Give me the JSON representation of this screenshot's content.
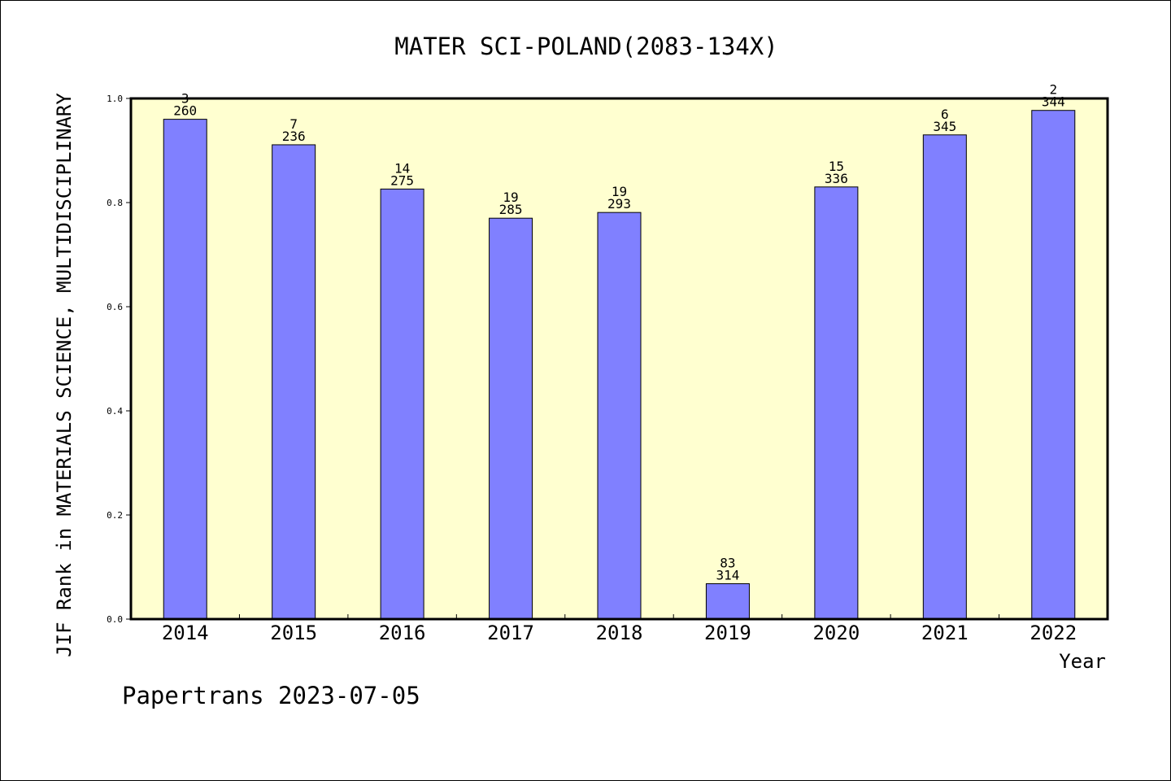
{
  "chart_data": {
    "type": "bar",
    "title": "MATER SCI-POLAND(2083-134X)",
    "xlabel": "Year",
    "ylabel": "JIF Rank in MATERIALS SCIENCE, MULTIDISCIPLINARY",
    "categories": [
      "2014",
      "2015",
      "2016",
      "2017",
      "2018",
      "2019",
      "2020",
      "2021",
      "2022"
    ],
    "values": [
      0.96,
      0.911,
      0.826,
      0.77,
      0.781,
      0.068,
      0.83,
      0.93,
      0.977
    ],
    "rank_labels": [
      "3",
      "7",
      "14",
      "19",
      "19",
      "83",
      "15",
      "6",
      "2"
    ],
    "total_labels": [
      "260",
      "236",
      "275",
      "285",
      "293",
      "314",
      "336",
      "345",
      "344"
    ],
    "ylim": [
      0.0,
      1.0
    ],
    "yticks": [
      "0.0",
      "0.2",
      "0.4",
      "0.6",
      "0.8",
      "1.0"
    ],
    "grid": false,
    "colors": {
      "bar": "#8080ff",
      "plot_background": "#ffffd0",
      "axis": "#000000"
    }
  },
  "footer": {
    "text": "Papertrans 2023-07-05"
  }
}
